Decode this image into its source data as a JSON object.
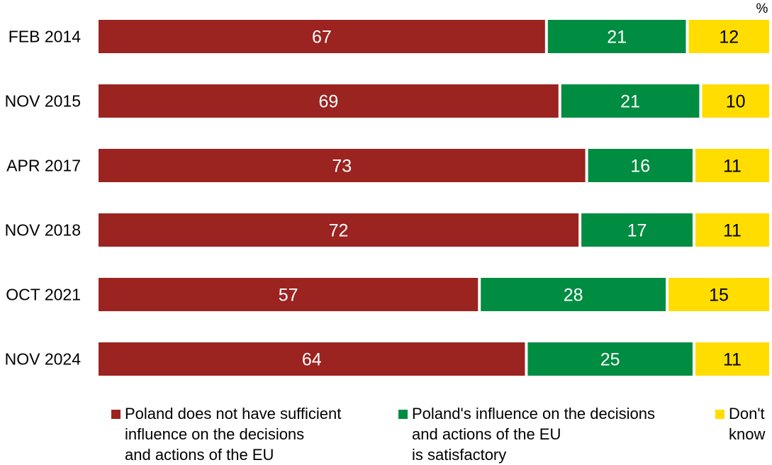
{
  "chart_data": {
    "type": "bar",
    "orientation": "horizontal",
    "stacked": true,
    "unit_label": "%",
    "categories": [
      "FEB 2014",
      "NOV 2015",
      "APR 2017",
      "NOV 2018",
      "OCT 2021",
      "NOV 2024"
    ],
    "series": [
      {
        "name": "Poland does not have sufficient influence on the decisions and actions of the EU",
        "legend_lines": [
          "Poland does not have sufficient",
          "influence on the decisions",
          "and actions of the EU"
        ],
        "color": "#9b2320",
        "label_color": "#ffffff",
        "values": [
          67,
          69,
          73,
          72,
          57,
          64
        ]
      },
      {
        "name": "Poland's influence on the decisions and actions of the EU is satisfactory",
        "legend_lines": [
          "Poland's influence on the decisions",
          "and actions of the EU",
          "is satisfactory"
        ],
        "color": "#008c41",
        "label_color": "#ffffff",
        "values": [
          21,
          21,
          16,
          17,
          28,
          25
        ]
      },
      {
        "name": "Don't know",
        "legend_lines": [
          "Don't",
          "know"
        ],
        "color": "#ffdd00",
        "label_color": "#000000",
        "values": [
          12,
          10,
          11,
          11,
          15,
          11
        ]
      }
    ],
    "xlim": [
      0,
      100
    ],
    "grid": false,
    "legend_position": "bottom"
  }
}
